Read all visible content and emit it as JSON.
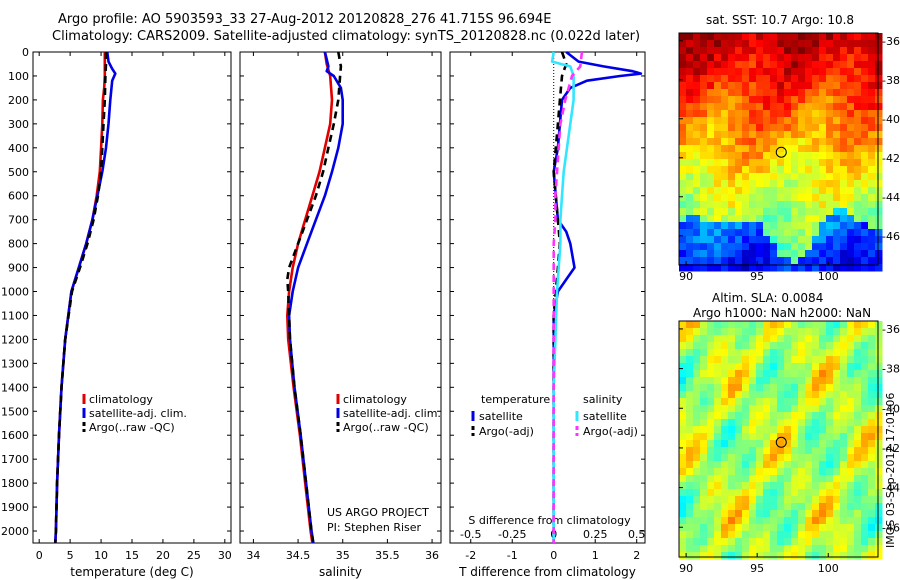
{
  "titles": {
    "line1": "Argo profile: AO 5903593_33 27-Aug-2012 20120828_276 41.715S 96.694E",
    "line2": "Climatology: CARS2009. Satellite-adjusted climatology: synTS_20120828.nc (0.022d later)",
    "sst": "sat. SST: 10.7 Argo: 10.8",
    "sla1": "Altim. SLA: 0.0084",
    "sla2": "Argo h1000: NaN h2000: NaN",
    "side": "IMOS 03-Sep-2012 17:01:06",
    "project1": "US ARGO PROJECT",
    "project2": "PI: Stephen Riser"
  },
  "colors": {
    "climatology": "#e00000",
    "satellite": "#0000e6",
    "argo": "#000000",
    "sat_salinity": "#33e6ff",
    "argo_salinity": "#ff33ff"
  },
  "chart_data": [
    {
      "type": "line",
      "xlabel": "temperature (deg C)",
      "xlim": [
        -1,
        31
      ],
      "xticks": [
        0,
        5,
        10,
        15,
        20,
        25,
        30
      ],
      "ylim": [
        0,
        2050
      ],
      "yticks": [
        0,
        100,
        200,
        300,
        400,
        500,
        600,
        700,
        800,
        900,
        1000,
        1100,
        1200,
        1300,
        1400,
        1500,
        1600,
        1700,
        1800,
        1900,
        2000
      ],
      "legend": [
        "climatology",
        "satellite-adj. clim.",
        "Argo(..raw -QC)"
      ],
      "series": [
        {
          "name": "climatology",
          "depth": [
            0,
            50,
            100,
            150,
            200,
            300,
            400,
            500,
            600,
            700,
            800,
            900,
            1000,
            1200,
            1400,
            1600,
            1800,
            2000,
            2050
          ],
          "values": [
            10.6,
            10.6,
            10.6,
            10.5,
            10.3,
            10.2,
            10.0,
            9.8,
            9.3,
            8.6,
            7.6,
            6.4,
            5.2,
            4.2,
            3.6,
            3.2,
            2.9,
            2.7,
            2.6
          ]
        },
        {
          "name": "satellite-adj. clim.",
          "depth": [
            0,
            40,
            70,
            90,
            120,
            200,
            300,
            400,
            500,
            600,
            700,
            800,
            900,
            1000,
            1200,
            1400,
            1600,
            1800,
            2000,
            2050
          ],
          "values": [
            11.0,
            11.2,
            11.8,
            12.3,
            11.8,
            11.5,
            11.2,
            10.8,
            10.2,
            9.4,
            8.6,
            7.6,
            6.4,
            5.2,
            4.2,
            3.6,
            3.2,
            2.9,
            2.7,
            2.6
          ]
        },
        {
          "name": "Argo(..raw -QC)",
          "depth": [
            0,
            50,
            100,
            200,
            300,
            400,
            500,
            600,
            700,
            800,
            900,
            1000,
            1200,
            1400,
            1600,
            1800,
            2000,
            2050
          ],
          "values": [
            10.8,
            10.8,
            10.7,
            10.6,
            10.4,
            10.2,
            10.0,
            9.5,
            8.8,
            7.8,
            6.6,
            5.3,
            4.2,
            3.6,
            3.2,
            2.9,
            2.7,
            2.6
          ]
        }
      ]
    },
    {
      "type": "line",
      "xlabel": "salinity",
      "xlim": [
        33.85,
        36.1
      ],
      "xticks": [
        34,
        34.5,
        35,
        35.5,
        36
      ],
      "xticklabels": [
        "34",
        "34.5",
        "35",
        "35.5",
        "36"
      ],
      "ylim": [
        0,
        2050
      ],
      "legend": [
        "climatology",
        "satellite-adj. clim.",
        "Argo(..raw -QC)"
      ],
      "series": [
        {
          "name": "climatology",
          "depth": [
            0,
            50,
            100,
            200,
            300,
            400,
            500,
            600,
            700,
            800,
            900,
            1000,
            1100,
            1200,
            1400,
            1600,
            1800,
            2000,
            2050
          ],
          "values": [
            34.8,
            34.82,
            34.86,
            34.88,
            34.86,
            34.8,
            34.74,
            34.66,
            34.58,
            34.5,
            34.44,
            34.4,
            34.38,
            34.39,
            34.45,
            34.52,
            34.58,
            34.64,
            34.66
          ]
        },
        {
          "name": "satellite-adj. clim.",
          "depth": [
            0,
            30,
            60,
            80,
            100,
            150,
            200,
            300,
            400,
            500,
            600,
            700,
            800,
            900,
            1000,
            1100,
            1200,
            1400,
            1600,
            1800,
            2000,
            2050
          ],
          "values": [
            34.8,
            34.82,
            34.84,
            34.82,
            34.9,
            34.98,
            35.0,
            35.0,
            34.95,
            34.88,
            34.8,
            34.7,
            34.6,
            34.5,
            34.44,
            34.4,
            34.41,
            34.46,
            34.53,
            34.59,
            34.65,
            34.67
          ]
        },
        {
          "name": "Argo(..raw -QC)",
          "depth": [
            0,
            60,
            100,
            200,
            300,
            400,
            500,
            600,
            700,
            800,
            900,
            950,
            1000,
            1100,
            1200,
            1400,
            1600,
            1800,
            2000,
            2050
          ],
          "values": [
            34.95,
            34.98,
            34.97,
            34.95,
            34.9,
            34.84,
            34.78,
            34.7,
            34.6,
            34.5,
            34.4,
            34.38,
            34.39,
            34.4,
            34.41,
            34.46,
            34.53,
            34.59,
            34.65,
            34.67
          ]
        }
      ],
      "annotations": [
        "US ARGO PROJECT",
        "PI: Stephen Riser"
      ]
    },
    {
      "type": "line",
      "xlabel": "T difference from climatology",
      "xlabel_top": "S difference from climatology",
      "xlim": [
        -2.5,
        2.2
      ],
      "xticks": [
        -2,
        -1,
        0,
        1,
        2
      ],
      "xticks_top": [
        -0.5,
        -0.25,
        0,
        0.25,
        0.5
      ],
      "xticklabels_top": [
        "-0.5",
        "-0.25",
        "0",
        "0.25",
        "0.5"
      ],
      "ylim": [
        0,
        2050
      ],
      "legend_groups": [
        "temperature",
        "salinity"
      ],
      "legend": [
        "satellite",
        "Argo(-adj)",
        "satellite",
        "Argo(-adj)"
      ],
      "series": [
        {
          "name": "satellite",
          "group": "temperature",
          "depth": [
            0,
            40,
            60,
            80,
            90,
            100,
            120,
            150,
            200,
            300,
            400,
            500,
            600,
            700,
            750,
            800,
            850,
            900,
            950,
            1000,
            1050,
            1100,
            1200,
            1400,
            1600,
            1800,
            2000,
            2050
          ],
          "values": [
            0.3,
            0.6,
            1.2,
            1.9,
            2.1,
            1.6,
            0.8,
            0.4,
            0.2,
            0.15,
            0.1,
            0.0,
            0.05,
            0.1,
            0.3,
            0.4,
            0.45,
            0.5,
            0.3,
            0.1,
            0.05,
            0.0,
            0.0,
            0.0,
            0.0,
            0.0,
            0.0,
            0.0
          ]
        },
        {
          "name": "Argo(-adj)",
          "group": "temperature",
          "depth": [
            0,
            50,
            100,
            200,
            300,
            400,
            500,
            600,
            700,
            800,
            900,
            1000,
            1100,
            1200,
            1400,
            1600,
            1800,
            2000,
            2050
          ],
          "values": [
            0.2,
            0.3,
            0.2,
            0.15,
            0.1,
            0.05,
            0.0,
            0.05,
            0.1,
            0.15,
            0.1,
            0.05,
            0.0,
            0.0,
            0.0,
            0.0,
            0.0,
            0.0,
            0.0
          ]
        },
        {
          "name": "satellite",
          "group": "salinity",
          "depth": [
            0,
            40,
            60,
            100,
            200,
            300,
            400,
            500,
            600,
            700,
            800,
            900,
            1000,
            1200,
            1400,
            1600,
            1800,
            2000,
            2050
          ],
          "values": [
            0.0,
            -0.01,
            0.1,
            0.12,
            0.12,
            0.1,
            0.08,
            0.06,
            0.05,
            0.04,
            0.04,
            0.03,
            0.02,
            0.01,
            0.0,
            0.0,
            0.0,
            0.0,
            0.0
          ]
        },
        {
          "name": "Argo(-adj)",
          "group": "salinity",
          "depth": [
            0,
            60,
            100,
            200,
            300,
            400,
            500,
            600,
            700,
            800,
            900,
            1000,
            1100,
            1200,
            1400,
            1600,
            1800,
            2000,
            2050
          ],
          "values": [
            0.17,
            0.16,
            0.11,
            0.07,
            0.04,
            0.03,
            0.02,
            0.01,
            0.01,
            0.0,
            0.0,
            0.0,
            0.0,
            0.0,
            0.0,
            0.0,
            0.0,
            0.0,
            0.0
          ]
        }
      ]
    },
    {
      "type": "heatmap",
      "title": "sat. SST: 10.7 Argo: 10.8",
      "xlim": [
        89.5,
        103.5
      ],
      "ylim": [
        -47.5,
        -35.6
      ],
      "xticks": [
        90,
        95,
        100
      ],
      "yticks": [
        -36,
        -38,
        -40,
        -42,
        -44,
        -46
      ],
      "marker": {
        "lon": 96.694,
        "lat": -41.715
      }
    },
    {
      "type": "heatmap",
      "title": "Altim. SLA: 0.0084",
      "xlim": [
        89.5,
        103.5
      ],
      "ylim": [
        -47.5,
        -35.6
      ],
      "xticks": [
        90,
        95,
        100
      ],
      "yticks": [
        -36,
        -38,
        -40,
        -42,
        -44,
        -46
      ],
      "marker": {
        "lon": 96.694,
        "lat": -41.715
      }
    }
  ]
}
